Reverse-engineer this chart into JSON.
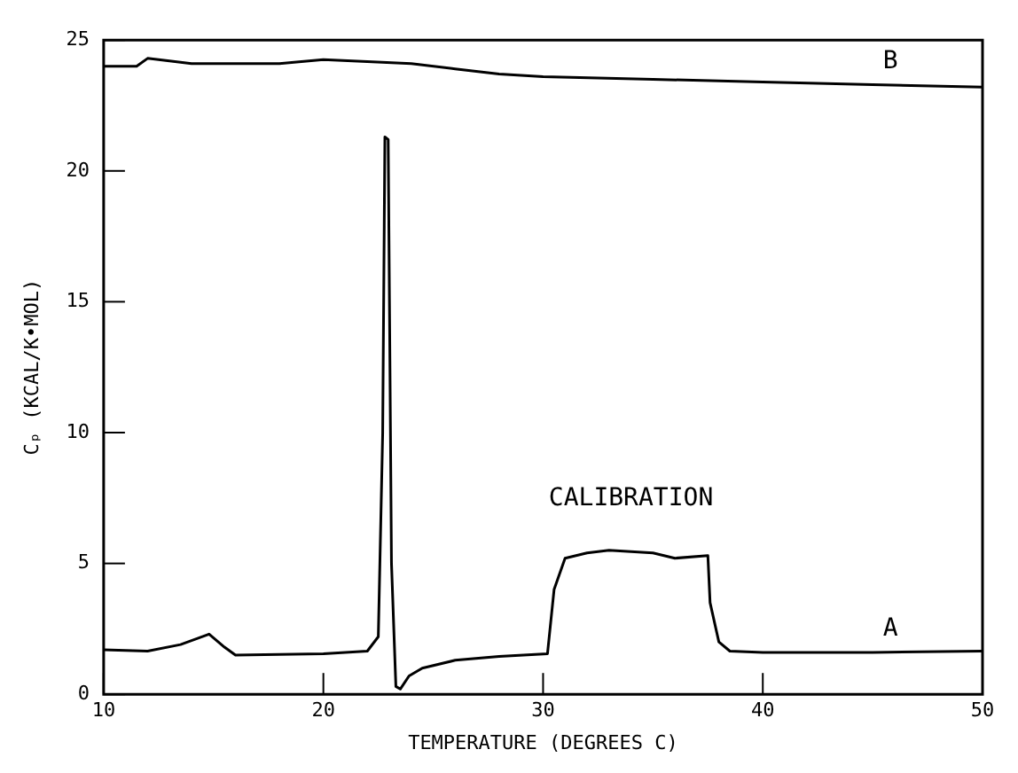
{
  "chart_data": {
    "type": "line",
    "xlabel": "TEMPERATURE (DEGREES C)",
    "ylabel": "Cₚ (KCAL/K•MOL)",
    "xlim": [
      10,
      50
    ],
    "ylim": [
      0,
      25
    ],
    "xticks": [
      10,
      20,
      30,
      40,
      50
    ],
    "yticks": [
      0,
      5,
      10,
      15,
      20,
      25
    ],
    "grid": false,
    "legend": false,
    "marker": "none",
    "line_style": "solid",
    "annotations": [
      "CALIBRATION"
    ],
    "series": [
      {
        "name": "A",
        "color": "#000000",
        "x": [
          10,
          12,
          13.5,
          14.8,
          15.5,
          16,
          20,
          22,
          22.5,
          22.7,
          22.8,
          22.95,
          23.1,
          23.3,
          23.5,
          23.9,
          24.5,
          26,
          28,
          30.2,
          30.5,
          31,
          32,
          33,
          35,
          36,
          37.5,
          37.6,
          38,
          38.5,
          40,
          45,
          50
        ],
        "values": [
          1.7,
          1.65,
          1.9,
          2.3,
          1.8,
          1.5,
          1.55,
          1.65,
          2.2,
          10,
          21.3,
          21.2,
          5,
          0.3,
          0.2,
          0.7,
          1.0,
          1.3,
          1.45,
          1.55,
          4.0,
          5.2,
          5.4,
          5.5,
          5.4,
          5.2,
          5.3,
          3.5,
          2.0,
          1.65,
          1.6,
          1.6,
          1.65
        ]
      },
      {
        "name": "B",
        "color": "#000000",
        "x": [
          10,
          11.5,
          12,
          14,
          18,
          20,
          24,
          26,
          28,
          30,
          35,
          40,
          45,
          50
        ],
        "values": [
          24.0,
          24.0,
          24.3,
          24.1,
          24.1,
          24.25,
          24.1,
          23.9,
          23.7,
          23.6,
          23.5,
          23.4,
          23.3,
          23.2
        ]
      }
    ]
  }
}
